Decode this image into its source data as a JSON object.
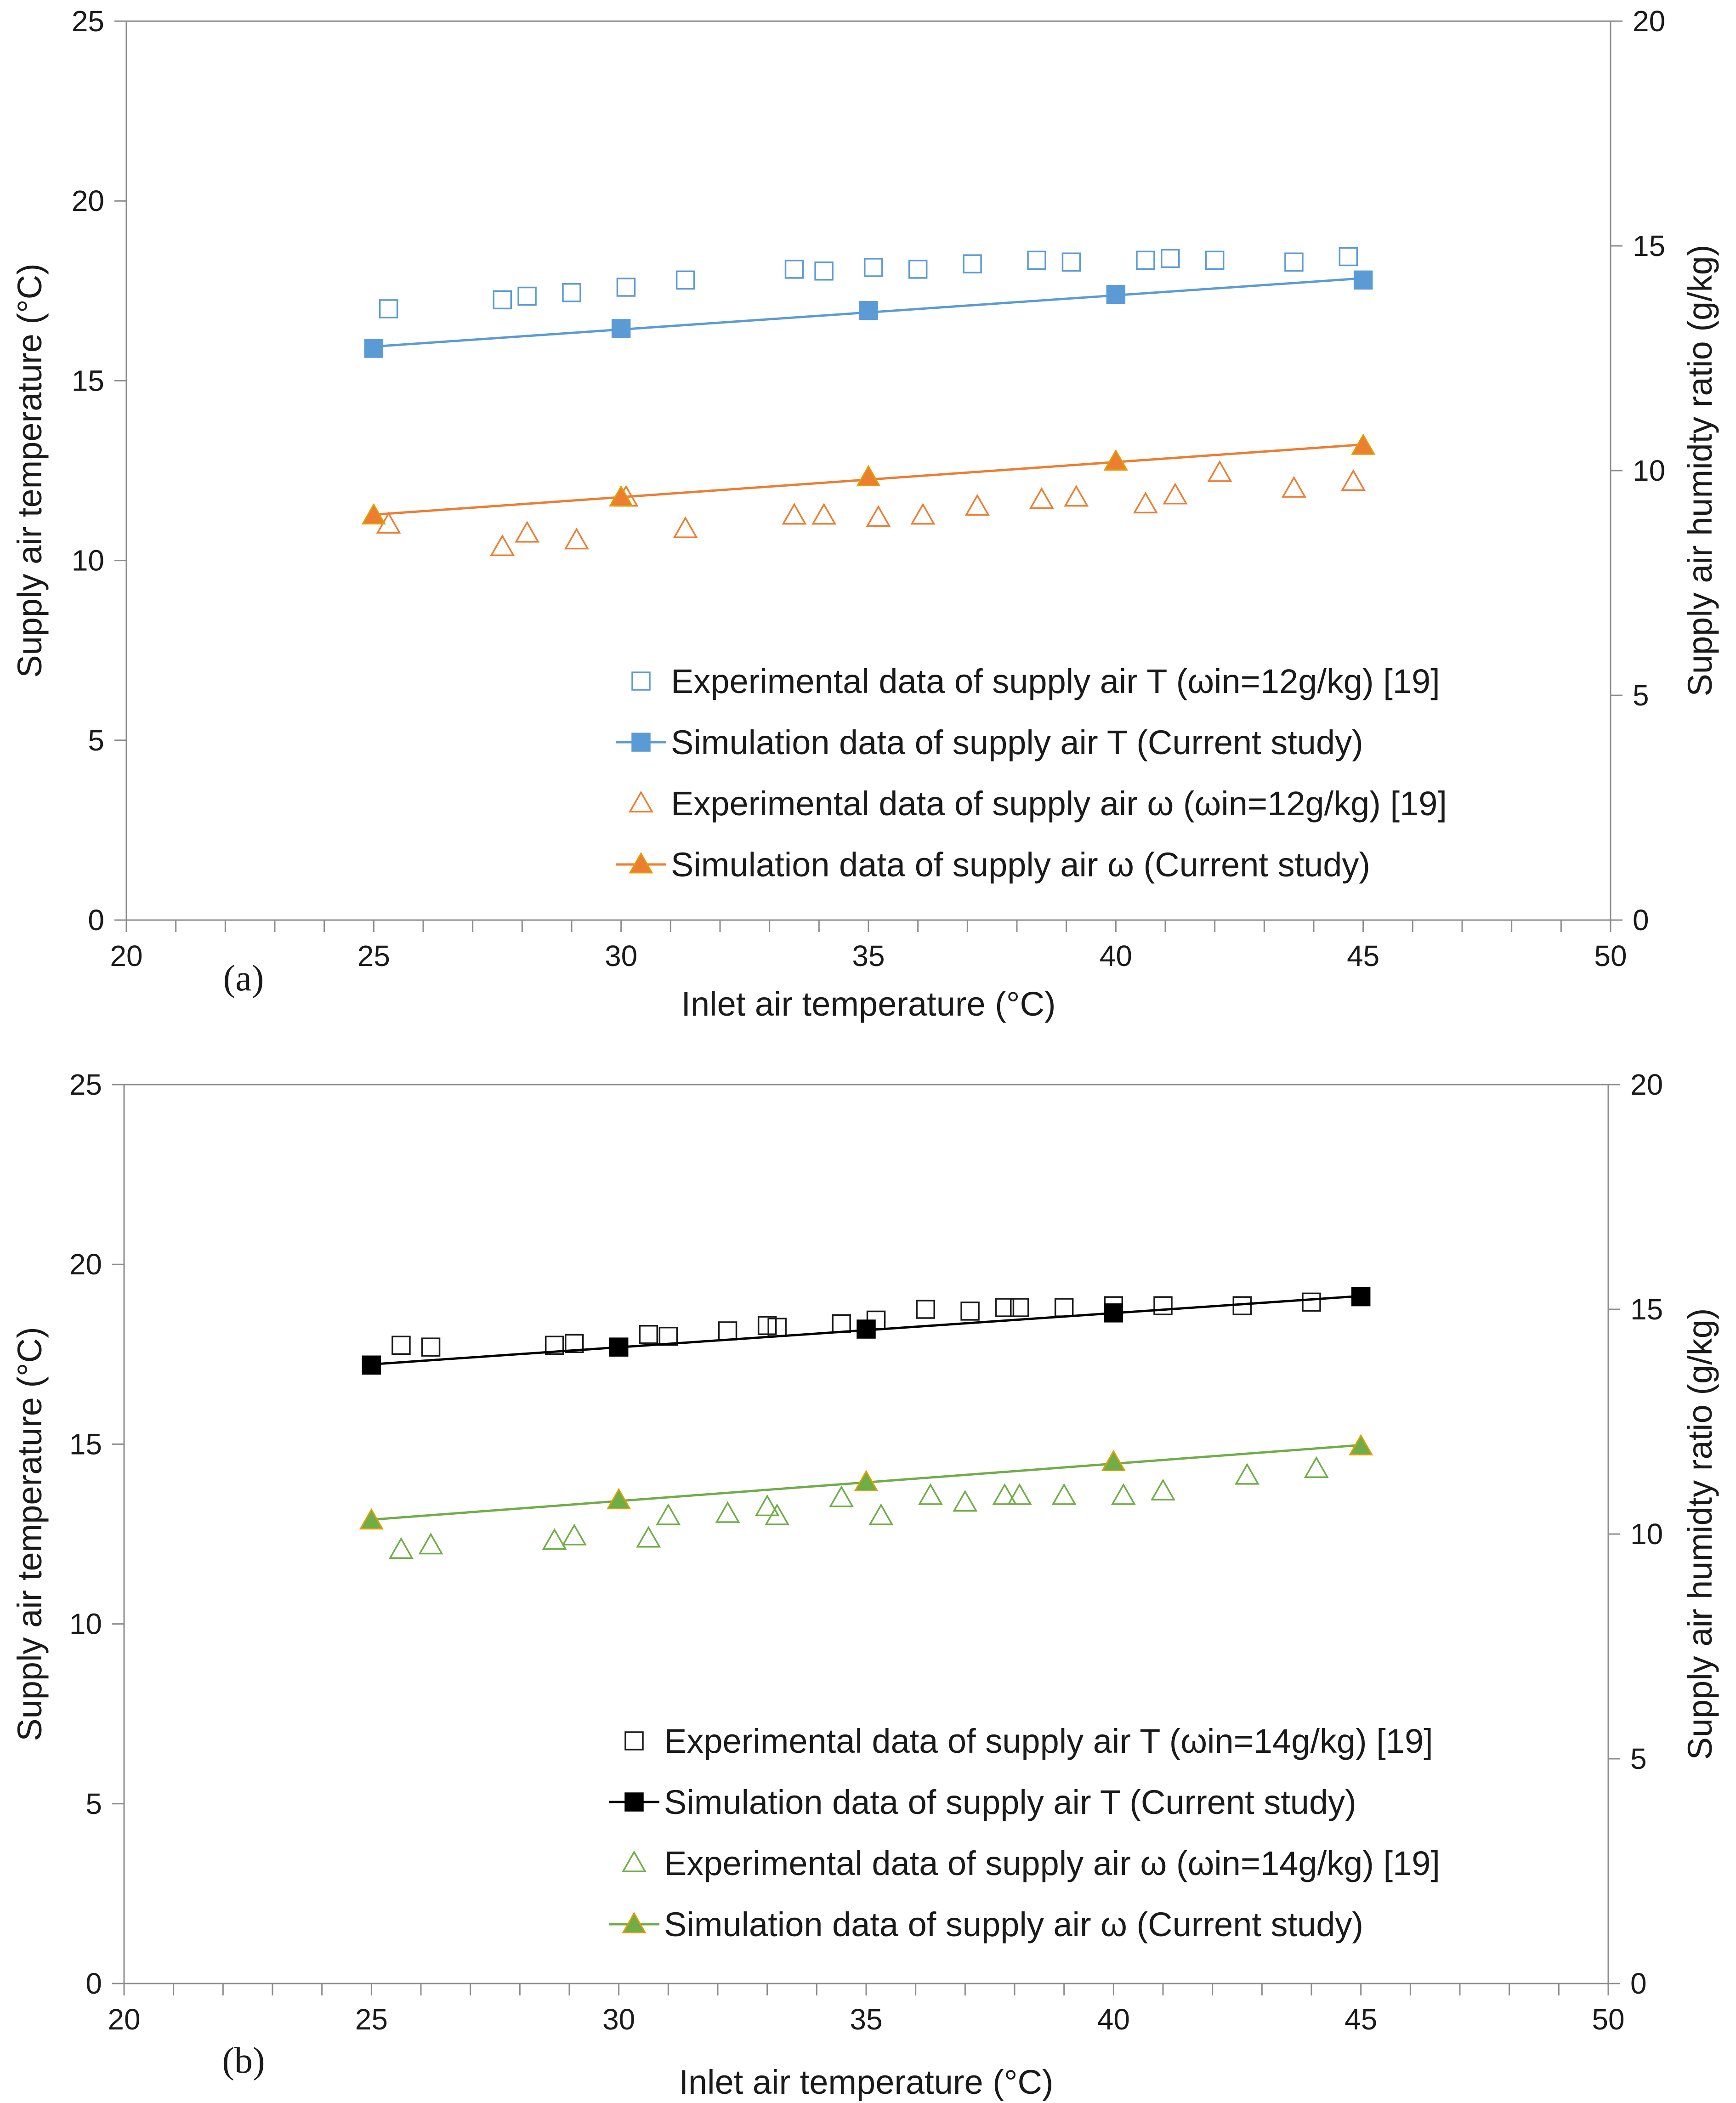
{
  "chart_data": [
    {
      "type": "scatter",
      "panel_label": "(a)",
      "xlabel": "Inlet air temperature (°C)",
      "ylabel": "Supply air temperature (°C)",
      "y2label": "Supply air humidty ratio (g/kg)",
      "xlim": [
        20,
        50
      ],
      "ylim": [
        0,
        25
      ],
      "y2lim": [
        0,
        20
      ],
      "x_ticks": [
        20,
        25,
        30,
        35,
        40,
        45,
        50
      ],
      "y_ticks": [
        0,
        5,
        10,
        15,
        20,
        25
      ],
      "y2_ticks": [
        0,
        5,
        10,
        15,
        20
      ],
      "grid": false,
      "legend_position": "bottom-right",
      "series": [
        {
          "name": "Experimental data of supply air T (ωin=12g/kg) [19]",
          "axis": "left",
          "marker": "square-open",
          "line": false,
          "color": "#5b9bd5",
          "x": [
            25.3,
            27.6,
            28.1,
            29.0,
            30.1,
            31.3,
            33.5,
            34.1,
            35.1,
            36.0,
            37.1,
            38.4,
            39.1,
            40.6,
            41.1,
            42.0,
            43.6,
            44.7
          ],
          "y": [
            17.0,
            17.25,
            17.35,
            17.45,
            17.6,
            17.8,
            18.1,
            18.05,
            18.15,
            18.1,
            18.25,
            18.35,
            18.3,
            18.35,
            18.4,
            18.35,
            18.3,
            18.45
          ]
        },
        {
          "name": "Simulation data of supply air T (Current study)",
          "axis": "left",
          "marker": "square-filled",
          "line": true,
          "color": "#5b9bd5",
          "x": [
            25,
            30,
            35,
            40,
            45
          ],
          "y": [
            15.9,
            16.45,
            16.95,
            17.4,
            17.8
          ]
        },
        {
          "name": "Experimental data of supply air ω (ωin=12g/kg) [19]",
          "axis": "right",
          "marker": "triangle-open",
          "line": false,
          "color": "#ed7d31",
          "x": [
            25.3,
            27.6,
            28.1,
            29.1,
            30.1,
            31.3,
            33.5,
            34.1,
            35.2,
            36.1,
            37.2,
            38.5,
            39.2,
            40.6,
            41.2,
            42.1,
            43.6,
            44.8
          ],
          "y": [
            8.8,
            8.3,
            8.6,
            8.45,
            9.4,
            8.7,
            9.0,
            9.0,
            8.95,
            9.0,
            9.2,
            9.35,
            9.4,
            9.25,
            9.45,
            9.95,
            9.6,
            9.75
          ]
        },
        {
          "name": "Simulation data of supply air ω (Current study)",
          "axis": "right",
          "marker": "triangle-filled",
          "line": true,
          "color": "#ed7d31",
          "x": [
            25,
            30,
            35,
            40,
            45
          ],
          "y": [
            9.0,
            9.4,
            9.85,
            10.2,
            10.55
          ]
        }
      ]
    },
    {
      "type": "scatter",
      "panel_label": "(b)",
      "xlabel": "Inlet air temperature (°C)",
      "ylabel": "Supply air temperature (°C)",
      "y2label": "Supply air humidty ratio (g/kg)",
      "xlim": [
        20,
        50
      ],
      "ylim": [
        0,
        25
      ],
      "y2lim": [
        0,
        20
      ],
      "x_ticks": [
        20,
        25,
        30,
        35,
        40,
        45,
        50
      ],
      "y_ticks": [
        0,
        5,
        10,
        15,
        20,
        25
      ],
      "y2_ticks": [
        0,
        5,
        10,
        15,
        20
      ],
      "grid": false,
      "legend_position": "bottom-right",
      "series": [
        {
          "name": "Experimental data of supply air T (ωin=14g/kg) [19]",
          "axis": "left",
          "marker": "square-open",
          "line": false,
          "color": "#1a1a1a",
          "x": [
            25.6,
            26.2,
            28.7,
            29.1,
            30.6,
            31.0,
            32.2,
            33.0,
            33.2,
            34.5,
            35.2,
            36.2,
            37.1,
            37.8,
            38.1,
            39.0,
            40.0,
            41.0,
            42.6,
            44.0
          ],
          "y": [
            17.75,
            17.7,
            17.75,
            17.8,
            18.05,
            18.0,
            18.15,
            18.3,
            18.25,
            18.35,
            18.45,
            18.75,
            18.7,
            18.8,
            18.8,
            18.8,
            18.85,
            18.85,
            18.85,
            18.95
          ]
        },
        {
          "name": "Simulation data of supply air T (Current study)",
          "axis": "left",
          "marker": "square-filled",
          "line": true,
          "color": "#000000",
          "x": [
            25,
            30,
            35,
            40,
            45
          ],
          "y": [
            17.2,
            17.7,
            18.2,
            18.65,
            19.1
          ]
        },
        {
          "name": "Experimental data of supply air ω (ωin=14g/kg) [19]",
          "axis": "right",
          "marker": "triangle-open",
          "line": false,
          "color": "#70ad47",
          "x": [
            25.6,
            26.2,
            28.7,
            29.1,
            30.6,
            31.0,
            32.2,
            33.0,
            33.2,
            34.5,
            35.3,
            36.3,
            37.0,
            37.8,
            38.1,
            39.0,
            40.2,
            41.0,
            42.7,
            44.1
          ],
          "y": [
            9.65,
            9.75,
            9.85,
            9.95,
            9.9,
            10.4,
            10.45,
            10.6,
            10.4,
            10.8,
            10.4,
            10.85,
            10.7,
            10.85,
            10.85,
            10.85,
            10.85,
            10.95,
            11.3,
            11.45
          ]
        },
        {
          "name": "Simulation data of supply air ω (Current study)",
          "axis": "right",
          "marker": "triangle-filled",
          "line": true,
          "color": "#70ad47",
          "x": [
            25,
            30,
            35,
            40,
            45
          ],
          "y": [
            10.3,
            10.75,
            11.15,
            11.6,
            11.95
          ]
        }
      ]
    }
  ]
}
